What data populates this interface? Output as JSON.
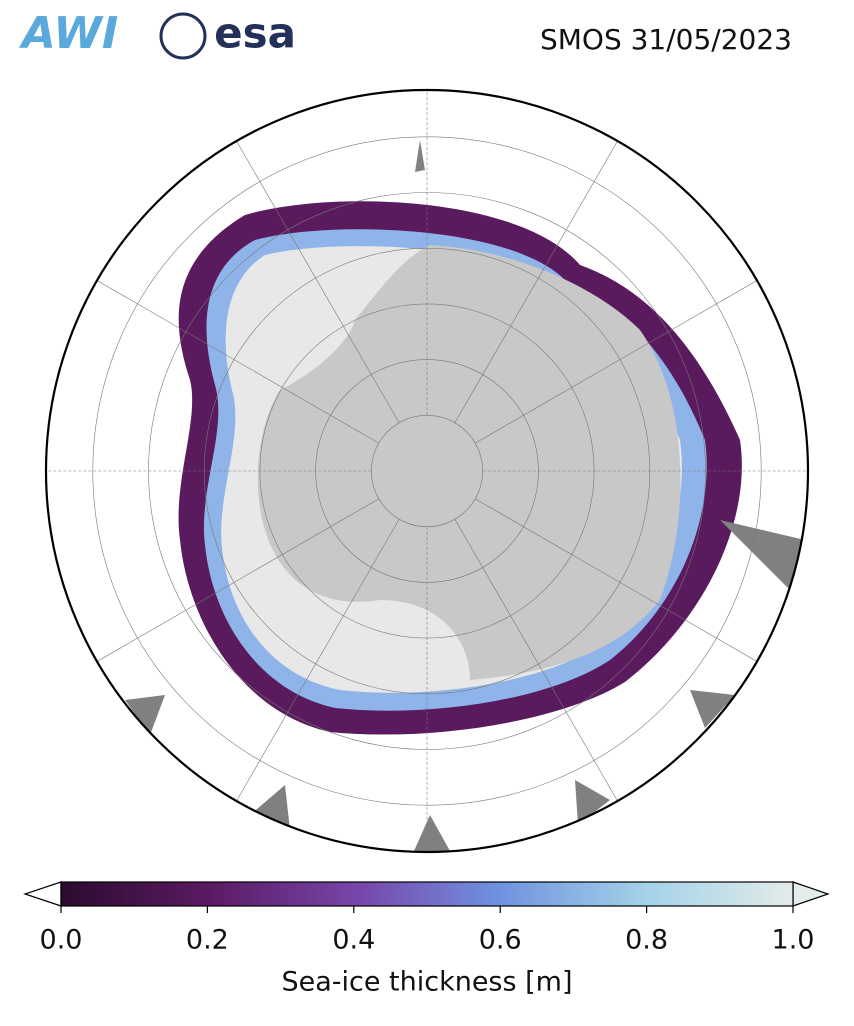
{
  "header": {
    "logos": [
      "AWI",
      "esa"
    ],
    "title": "SMOS 31/05/2023"
  },
  "colorbar": {
    "label": "Sea-ice thickness [m]",
    "lim": [
      0,
      1
    ],
    "ticks": [
      {
        "value": 0,
        "label": "0.0"
      },
      0.2,
      0.4,
      0.6,
      0.8,
      {
        "value": 1,
        "label": "1.0"
      }
    ],
    "colors": [
      "#2b0b2e",
      "#5a1a62",
      "#7744a8",
      "#6f93e0",
      "#a4d2e8",
      "#e2ecea"
    ]
  }
}
